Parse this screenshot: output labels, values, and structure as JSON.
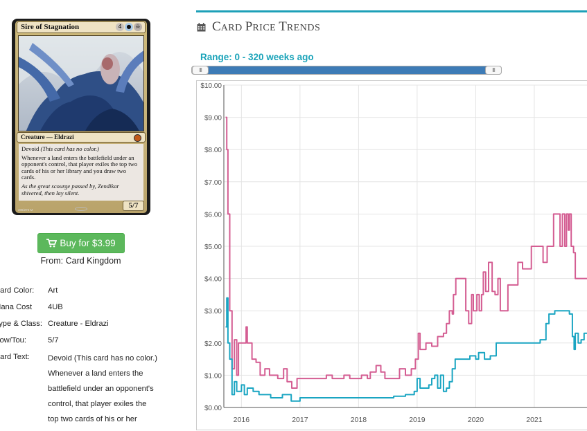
{
  "card": {
    "name": "Sire of Stagnation",
    "mana_cost_symbols": [
      "4",
      "U",
      "B"
    ],
    "type_line": "Creature — Eldrazi",
    "text_devoid": "Devoid",
    "text_devoid_reminder": "(This card has no color.)",
    "text_ability": "Whenever a land enters the battlefield under an opponent's control, that player exiles the top two cards of his or her library and you draw two cards.",
    "flavor_text": "As the great scourge passed by, Zendikar shivered, then lay silent.",
    "power_toughness": "5/7",
    "collector_number": "206/274 M"
  },
  "buy": {
    "icon": "shopping-cart-icon",
    "label": "Buy for $3.99",
    "source": "From: Card Kingdom",
    "color": "#5cb85c"
  },
  "details": {
    "card_color_label": "Card Color:",
    "card_color_value": "Art",
    "mana_cost_label": "Mana Cost",
    "mana_cost_value": "4UB",
    "type_label": "Type & Class:",
    "type_value": "Creature - Eldrazi",
    "pow_tou_label": "Pow/Tou:",
    "pow_tou_value": "5/7",
    "card_text_label": "Card Text:",
    "card_text_lines": [
      "Devoid (This card has no color.)",
      "Whenever a land enters the",
      "battlefield under an opponent's",
      "control, that player exiles the",
      "top two cards of his or her"
    ]
  },
  "panel": {
    "icon": "calendar-icon",
    "title_initial_c": "C",
    "title_rest_c": "ARD",
    "title_initial_p": "P",
    "title_rest_p": "RICE",
    "title_initial_t": "T",
    "title_rest_t": "RENDS",
    "accent_color": "#1da0b8",
    "range_label": "Range: 0 - 320 weeks ago",
    "slider": {
      "range_start_weeks": 0,
      "range_end_weeks": 320,
      "handle_glyph": "III"
    }
  },
  "chart_data": {
    "type": "line",
    "title": "",
    "xlabel": "",
    "ylabel": "",
    "xlim": [
      2015.7,
      2021.9
    ],
    "ylim": [
      0,
      10
    ],
    "grid": true,
    "yticks": [
      "$0.00",
      "$1.00",
      "$2.00",
      "$3.00",
      "$4.00",
      "$5.00",
      "$6.00",
      "$7.00",
      "$8.00",
      "$9.00",
      "$10.00"
    ],
    "xticks": [
      "2016",
      "2017",
      "2018",
      "2019",
      "2020",
      "2021"
    ],
    "series": [
      {
        "color": "#d45d92",
        "points": [
          [
            2015.73,
            9.0
          ],
          [
            2015.75,
            8.0
          ],
          [
            2015.77,
            6.0
          ],
          [
            2015.8,
            3.0
          ],
          [
            2015.84,
            1.2
          ],
          [
            2015.88,
            2.1
          ],
          [
            2015.92,
            1.0
          ],
          [
            2015.95,
            2.0
          ],
          [
            2016.05,
            2.0
          ],
          [
            2016.08,
            2.5
          ],
          [
            2016.1,
            2.0
          ],
          [
            2016.14,
            2.0
          ],
          [
            2016.18,
            1.5
          ],
          [
            2016.25,
            1.4
          ],
          [
            2016.32,
            1.0
          ],
          [
            2016.4,
            1.2
          ],
          [
            2016.48,
            1.0
          ],
          [
            2016.55,
            1.0
          ],
          [
            2016.62,
            0.9
          ],
          [
            2016.72,
            1.2
          ],
          [
            2016.78,
            0.8
          ],
          [
            2016.86,
            0.6
          ],
          [
            2016.95,
            0.9
          ],
          [
            2017.05,
            0.9
          ],
          [
            2017.15,
            0.9
          ],
          [
            2017.3,
            0.9
          ],
          [
            2017.45,
            1.0
          ],
          [
            2017.55,
            0.9
          ],
          [
            2017.65,
            0.9
          ],
          [
            2017.75,
            1.0
          ],
          [
            2017.85,
            0.9
          ],
          [
            2017.95,
            0.9
          ],
          [
            2018.05,
            1.0
          ],
          [
            2018.15,
            0.9
          ],
          [
            2018.2,
            1.1
          ],
          [
            2018.3,
            1.3
          ],
          [
            2018.38,
            1.1
          ],
          [
            2018.45,
            0.9
          ],
          [
            2018.6,
            0.9
          ],
          [
            2018.7,
            1.2
          ],
          [
            2018.8,
            1.0
          ],
          [
            2018.9,
            1.2
          ],
          [
            2018.97,
            1.5
          ],
          [
            2019.02,
            2.3
          ],
          [
            2019.05,
            1.8
          ],
          [
            2019.15,
            2.0
          ],
          [
            2019.25,
            1.9
          ],
          [
            2019.35,
            2.2
          ],
          [
            2019.45,
            2.3
          ],
          [
            2019.5,
            2.6
          ],
          [
            2019.55,
            3.0
          ],
          [
            2019.6,
            2.9
          ],
          [
            2019.62,
            3.5
          ],
          [
            2019.66,
            4.0
          ],
          [
            2019.8,
            4.0
          ],
          [
            2019.83,
            3.0
          ],
          [
            2019.88,
            2.6
          ],
          [
            2019.93,
            3.5
          ],
          [
            2019.96,
            3.0
          ],
          [
            2020.02,
            3.5
          ],
          [
            2020.06,
            3.0
          ],
          [
            2020.1,
            3.5
          ],
          [
            2020.13,
            4.2
          ],
          [
            2020.17,
            3.6
          ],
          [
            2020.22,
            4.5
          ],
          [
            2020.28,
            3.6
          ],
          [
            2020.33,
            3.5
          ],
          [
            2020.38,
            4.0
          ],
          [
            2020.42,
            3.0
          ],
          [
            2020.5,
            3.0
          ],
          [
            2020.55,
            3.8
          ],
          [
            2020.65,
            3.8
          ],
          [
            2020.72,
            4.5
          ],
          [
            2020.8,
            4.3
          ],
          [
            2020.95,
            5.0
          ],
          [
            2021.1,
            5.0
          ],
          [
            2021.15,
            4.5
          ],
          [
            2021.22,
            5.0
          ],
          [
            2021.3,
            5.0
          ],
          [
            2021.33,
            6.0
          ],
          [
            2021.42,
            6.0
          ],
          [
            2021.44,
            5.0
          ],
          [
            2021.48,
            6.0
          ],
          [
            2021.52,
            5.0
          ],
          [
            2021.55,
            6.0
          ],
          [
            2021.58,
            5.5
          ],
          [
            2021.6,
            6.0
          ],
          [
            2021.63,
            5.0
          ],
          [
            2021.67,
            4.8
          ],
          [
            2021.7,
            4.0
          ],
          [
            2021.9,
            4.0
          ]
        ]
      },
      {
        "color": "#1aa5c2",
        "points": [
          [
            2015.73,
            2.5
          ],
          [
            2015.75,
            3.4
          ],
          [
            2015.77,
            2.0
          ],
          [
            2015.8,
            1.5
          ],
          [
            2015.84,
            0.4
          ],
          [
            2015.88,
            0.8
          ],
          [
            2015.92,
            0.5
          ],
          [
            2016.0,
            0.7
          ],
          [
            2016.05,
            0.4
          ],
          [
            2016.1,
            0.6
          ],
          [
            2016.2,
            0.5
          ],
          [
            2016.3,
            0.4
          ],
          [
            2016.4,
            0.4
          ],
          [
            2016.5,
            0.3
          ],
          [
            2016.6,
            0.3
          ],
          [
            2016.7,
            0.4
          ],
          [
            2016.85,
            0.2
          ],
          [
            2017.0,
            0.3
          ],
          [
            2017.2,
            0.3
          ],
          [
            2017.4,
            0.3
          ],
          [
            2017.6,
            0.3
          ],
          [
            2017.8,
            0.3
          ],
          [
            2018.0,
            0.3
          ],
          [
            2018.2,
            0.3
          ],
          [
            2018.4,
            0.3
          ],
          [
            2018.6,
            0.35
          ],
          [
            2018.8,
            0.4
          ],
          [
            2018.95,
            0.5
          ],
          [
            2019.0,
            0.9
          ],
          [
            2019.05,
            0.6
          ],
          [
            2019.1,
            0.6
          ],
          [
            2019.2,
            0.7
          ],
          [
            2019.25,
            0.9
          ],
          [
            2019.3,
            1.0
          ],
          [
            2019.35,
            0.6
          ],
          [
            2019.4,
            1.0
          ],
          [
            2019.45,
            0.5
          ],
          [
            2019.5,
            0.6
          ],
          [
            2019.55,
            0.8
          ],
          [
            2019.6,
            1.2
          ],
          [
            2019.65,
            1.5
          ],
          [
            2019.75,
            1.5
          ],
          [
            2019.9,
            1.6
          ],
          [
            2020.0,
            1.5
          ],
          [
            2020.05,
            1.7
          ],
          [
            2020.15,
            1.5
          ],
          [
            2020.25,
            1.6
          ],
          [
            2020.35,
            2.0
          ],
          [
            2020.5,
            2.0
          ],
          [
            2020.7,
            2.0
          ],
          [
            2020.9,
            2.0
          ],
          [
            2021.05,
            2.0
          ],
          [
            2021.1,
            2.1
          ],
          [
            2021.2,
            2.6
          ],
          [
            2021.25,
            2.9
          ],
          [
            2021.35,
            3.0
          ],
          [
            2021.5,
            3.0
          ],
          [
            2021.6,
            2.9
          ],
          [
            2021.65,
            2.2
          ],
          [
            2021.68,
            1.8
          ],
          [
            2021.7,
            2.3
          ],
          [
            2021.75,
            2.0
          ],
          [
            2021.8,
            2.1
          ],
          [
            2021.85,
            2.3
          ],
          [
            2021.9,
            2.3
          ]
        ]
      }
    ]
  }
}
